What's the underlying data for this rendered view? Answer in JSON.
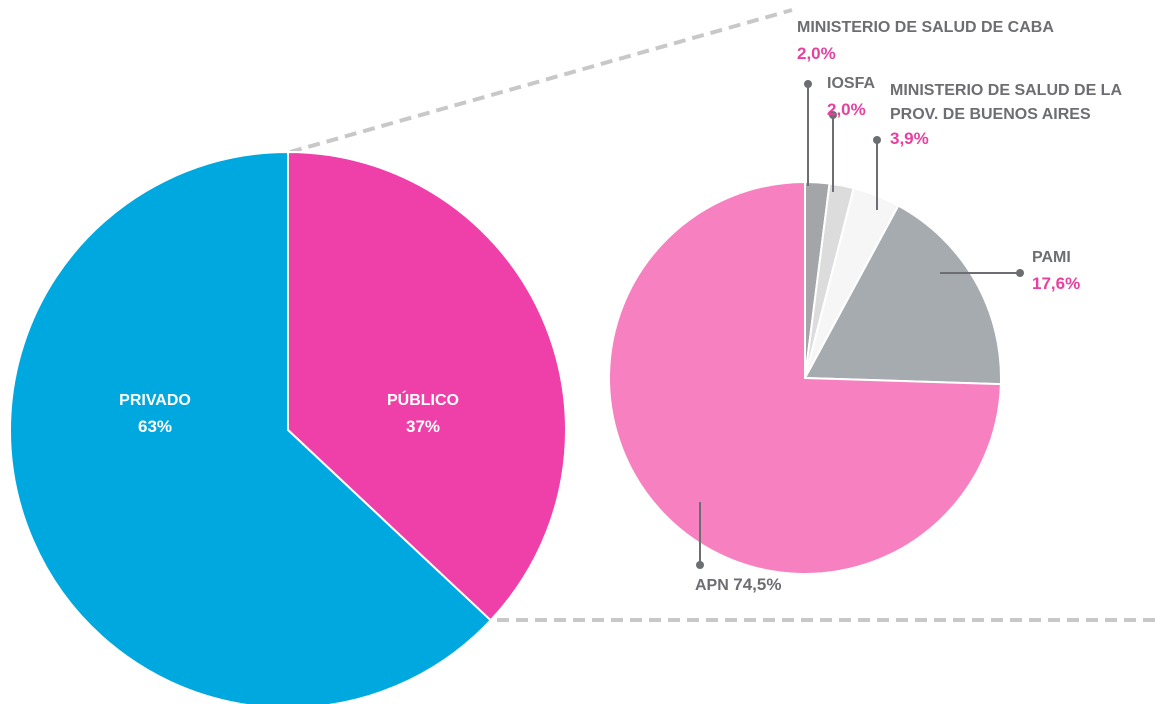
{
  "chart_data": [
    {
      "type": "pie",
      "categories": [
        "PÚBLICO",
        "PRIVADO"
      ],
      "values": [
        37,
        63
      ],
      "value_labels": [
        "37%",
        "63%"
      ],
      "colors": [
        "#ee40a8",
        "#00a8e0"
      ]
    },
    {
      "type": "pie",
      "categories": [
        "MINISTERIO DE SALUD DE CABA",
        "IOSFA",
        "MINISTERIO DE SALUD DE LA PROV. DE BUENOS AIRES",
        "PAMI",
        "APN"
      ],
      "values": [
        2.0,
        2.0,
        3.9,
        17.6,
        74.5
      ],
      "value_labels": [
        "2,0%",
        "2,0%",
        "3,9%",
        "17,6%",
        "74,5%"
      ],
      "colors": [
        "#a3a5a8",
        "#dcdcdd",
        "#f6f6f6",
        "#a6abb0",
        "#f780c0"
      ]
    }
  ]
}
